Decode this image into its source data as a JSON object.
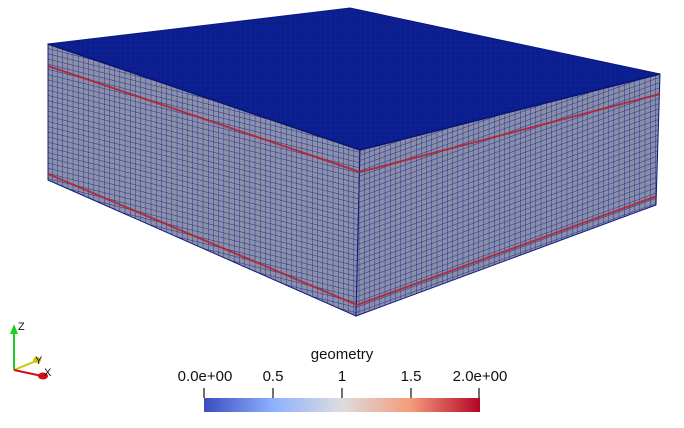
{
  "render_view": {
    "mesh_block": {
      "face_color": "#0a1d8c",
      "side_color": "#8a8ea6",
      "grid_line_color": "#1a2a96",
      "highlight_layer_color": "#b22030"
    }
  },
  "colorbar": {
    "title": "geometry",
    "ticks": [
      "0.0e+00",
      "0.5",
      "1",
      "1.5",
      "2.0e+00"
    ],
    "colors": [
      "#3b4cc0",
      "#8db0fe",
      "#dddddd",
      "#f49a7b",
      "#b40426"
    ]
  },
  "orientation_axes": {
    "z_label": "Z",
    "y_label": "Y",
    "x_label": "X",
    "z_color": "#22cc22",
    "y_color": "#d4c400",
    "x_color": "#cc1111"
  }
}
